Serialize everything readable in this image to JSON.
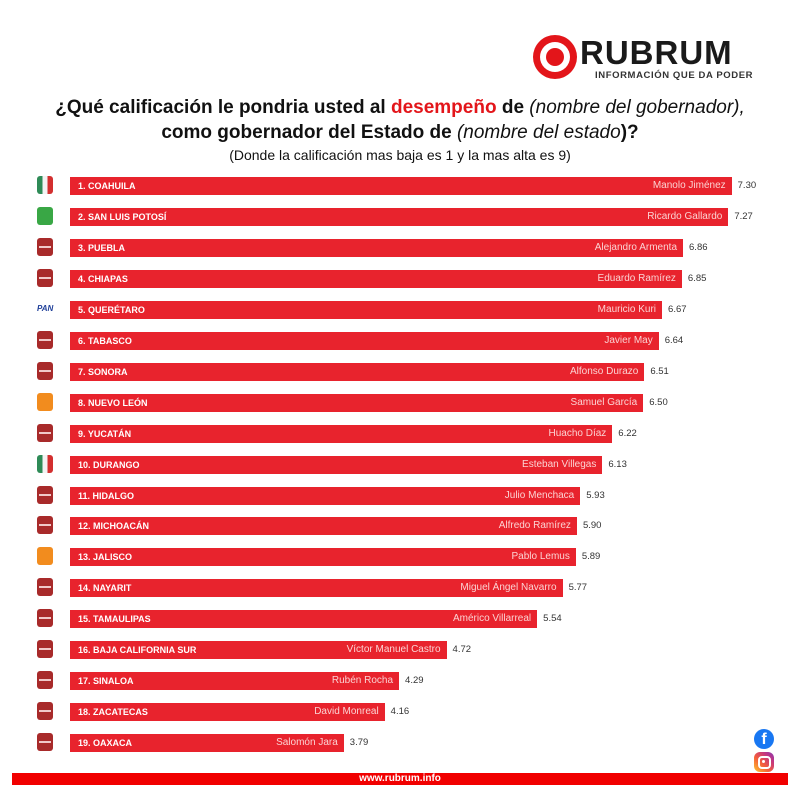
{
  "brand": {
    "name": "RUBRUM",
    "tagline": "INFORMACIÓN QUE DA PODER",
    "accent": "#e3151a"
  },
  "title": {
    "line1_a": "¿Qué calificación le pondria usted al ",
    "line1_highlight": "desempeño",
    "line1_b": " de ",
    "line1_paren_open": "(",
    "line1_italic": "nombre del gobernador",
    "line1_paren_close": "),",
    "line2_a": "como gobernador del Estado de ",
    "line2_paren_open": "(",
    "line2_italic": "nombre del estado",
    "line2_paren_close": ")?",
    "line3": "(Donde la calificación mas baja es 1 y la mas alta es 9)"
  },
  "chart_data": {
    "type": "bar",
    "orientation": "horizontal",
    "title": "¿Qué calificación le pondria usted al desempeño de (nombre del gobernador), como gobernador del Estado de (nombre del estado)?",
    "subtitle": "(Donde la calificación mas baja es 1 y la mas alta es 9)",
    "xlabel": "",
    "ylabel": "",
    "scale": [
      1,
      9
    ],
    "grid": false,
    "legend": null,
    "bar_color": "#e8232d",
    "categories": [
      "1. COAHUILA",
      "2. SAN LUIS POTOSÍ",
      "3. PUEBLA",
      "4. CHIAPAS",
      "5. QUERÉTARO",
      "6. TABASCO",
      "7. SONORA",
      "8. NUEVO LEÓN",
      "9. YUCATÁN",
      "10. DURANGO",
      "11. HIDALGO",
      "12. MICHOACÁN",
      "13. JALISCO",
      "14. NAYARIT",
      "15. TAMAULIPAS",
      "16. BAJA CALIFORNIA SUR",
      "17. SINALOA",
      "18. ZACATECAS",
      "19. OAXACA"
    ],
    "governors": [
      "Manolo Jiménez",
      "Ricardo Gallardo",
      "Alejandro Armenta",
      "Eduardo Ramírez",
      "Mauricio Kuri",
      "Javier May",
      "Alfonso Durazo",
      "Samuel García",
      "Huacho Díaz",
      "Esteban Villegas",
      "Julio Menchaca",
      "Alfredo Ramírez",
      "Pablo Lemus",
      "Miguel Ángel Navarro",
      "Américo Villarreal",
      "Víctor Manuel Castro",
      "Rubén Rocha",
      "David Monreal",
      "Salomón Jara"
    ],
    "parties": [
      "PRI",
      "PVEM",
      "MORENA",
      "MORENA",
      "PAN",
      "MORENA",
      "MORENA",
      "MC",
      "MORENA",
      "PRI",
      "MORENA",
      "MORENA",
      "MC",
      "MORENA",
      "MORENA",
      "MORENA",
      "MORENA",
      "MORENA",
      "MORENA"
    ],
    "values": [
      7.3,
      7.27,
      6.86,
      6.85,
      6.67,
      6.64,
      6.51,
      6.5,
      6.22,
      6.13,
      5.93,
      5.9,
      5.89,
      5.77,
      5.54,
      4.72,
      4.29,
      4.16,
      3.79
    ],
    "value_labels": [
      "7.30",
      "7.27",
      "6.86",
      "6.85",
      "6.67",
      "6.64",
      "6.51",
      "6.50",
      "6.22",
      "6.13",
      "5.93",
      "5.90",
      "5.89",
      "5.77",
      "5.54",
      "4.72",
      "4.29",
      "4.16",
      "3.79"
    ]
  },
  "social": {
    "facebook": "facebook-icon",
    "instagram": "instagram-icon"
  },
  "footer": {
    "url": "www.rubrum.info"
  }
}
